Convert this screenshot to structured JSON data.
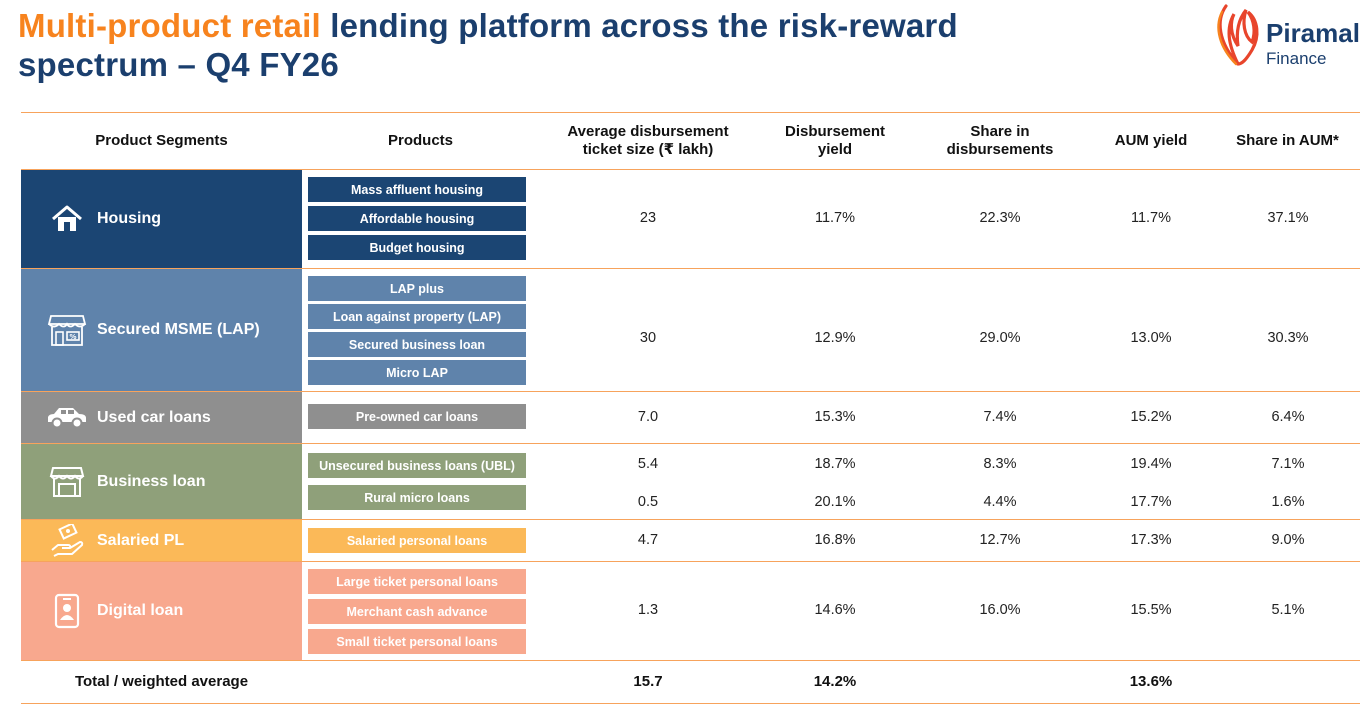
{
  "title": {
    "highlight": "Multi-product retail",
    "rest_line1": " lending platform across the risk-reward",
    "line2": "spectrum – Q4 FY26"
  },
  "logo": {
    "name": "Piramal",
    "sub": "Finance"
  },
  "columns": {
    "segments": "Product Segments",
    "products": "Products",
    "ticket": "Average disbursement ticket size (₹ lakh)",
    "disb_yield": "Disbursement yield",
    "share_disb": "Share in disbursements",
    "aum_yield": "AUM yield",
    "share_aum": "Share in AUM*"
  },
  "colors": {
    "housing": "#1b4573",
    "msme": "#5f83ab",
    "car": "#8f8f8f",
    "business": "#8fa07a",
    "salaried": "#fbb958",
    "digital": "#f8a88e",
    "accent": "#f7831e"
  },
  "segments": [
    {
      "name": "Housing",
      "icon": "house-icon",
      "products": [
        "Mass affluent housing",
        "Affordable housing",
        "Budget housing"
      ],
      "rows": [
        {
          "ticket": "23",
          "disb_yield": "11.7%",
          "share_disb": "22.3%",
          "aum_yield": "11.7%",
          "share_aum": "37.1%"
        }
      ]
    },
    {
      "name": "Secured MSME (LAP)",
      "icon": "storefront-icon",
      "products": [
        "LAP plus",
        "Loan against property (LAP)",
        "Secured business loan",
        "Micro LAP"
      ],
      "rows": [
        {
          "ticket": "30",
          "disb_yield": "12.9%",
          "share_disb": "29.0%",
          "aum_yield": "13.0%",
          "share_aum": "30.3%"
        }
      ]
    },
    {
      "name": "Used car loans",
      "icon": "car-icon",
      "products": [
        "Pre-owned car loans"
      ],
      "rows": [
        {
          "ticket": "7.0",
          "disb_yield": "15.3%",
          "share_disb": "7.4%",
          "aum_yield": "15.2%",
          "share_aum": "6.4%"
        }
      ]
    },
    {
      "name": "Business loan",
      "icon": "shop-icon",
      "products": [
        "Unsecured business loans (UBL)",
        "Rural micro loans"
      ],
      "rows": [
        {
          "ticket": "5.4",
          "disb_yield": "18.7%",
          "share_disb": "8.3%",
          "aum_yield": "19.4%",
          "share_aum": "7.1%"
        },
        {
          "ticket": "0.5",
          "disb_yield": "20.1%",
          "share_disb": "4.4%",
          "aum_yield": "17.7%",
          "share_aum": "1.6%"
        }
      ]
    },
    {
      "name": "Salaried PL",
      "icon": "hand-money-icon",
      "products": [
        "Salaried personal loans"
      ],
      "rows": [
        {
          "ticket": "4.7",
          "disb_yield": "16.8%",
          "share_disb": "12.7%",
          "aum_yield": "17.3%",
          "share_aum": "9.0%"
        }
      ]
    },
    {
      "name": "Digital loan",
      "icon": "phone-user-icon",
      "products": [
        "Large ticket personal loans",
        "Merchant cash advance",
        "Small ticket personal loans"
      ],
      "rows": [
        {
          "ticket": "1.3",
          "disb_yield": "14.6%",
          "share_disb": "16.0%",
          "aum_yield": "15.5%",
          "share_aum": "5.1%"
        }
      ]
    }
  ],
  "total": {
    "label": "Total / weighted average",
    "ticket": "15.7",
    "disb_yield": "14.2%",
    "aum_yield": "13.6%"
  }
}
